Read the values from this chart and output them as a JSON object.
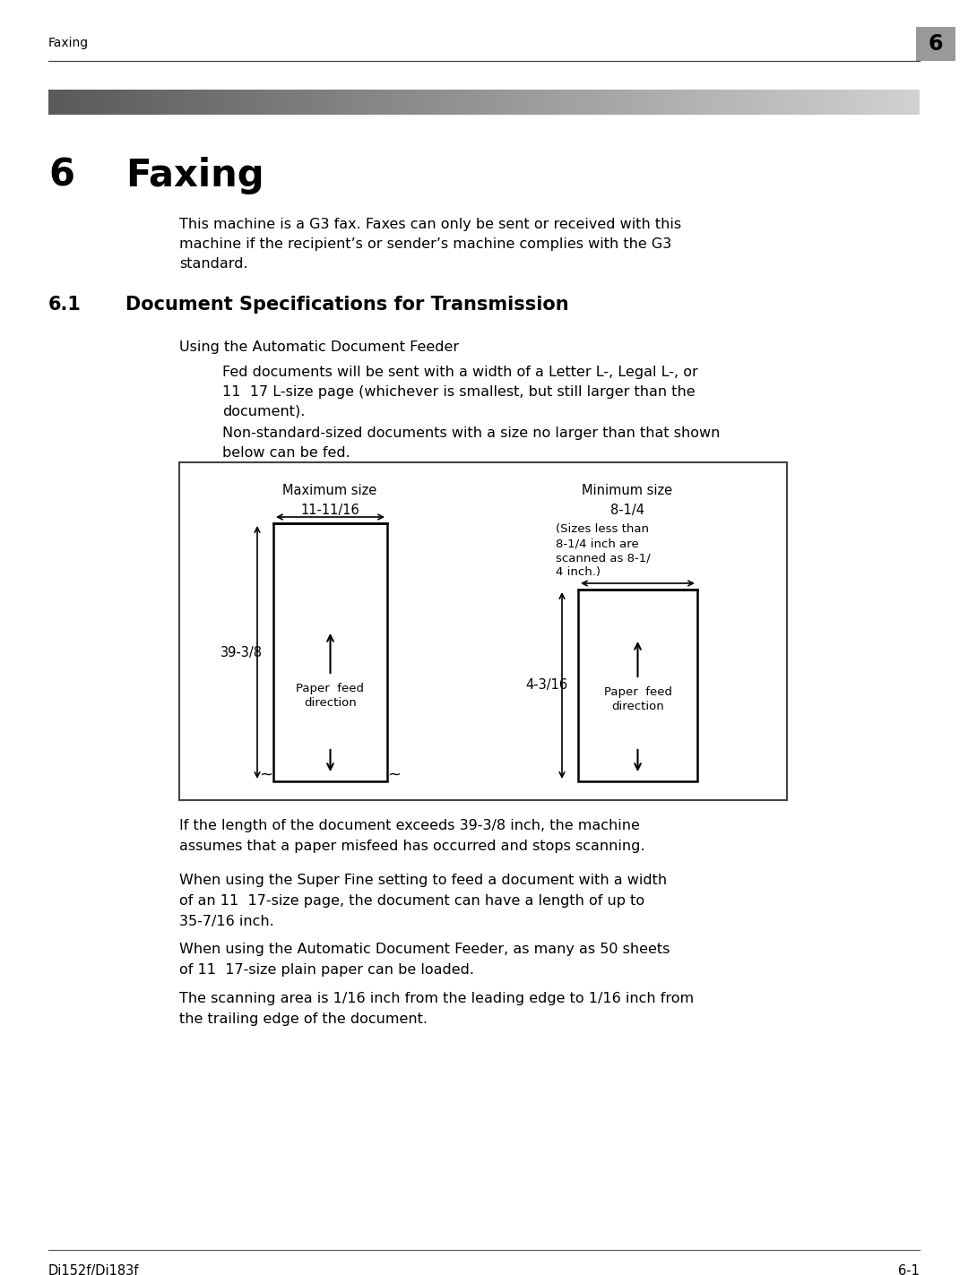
{
  "page_bg": "#ffffff",
  "header_text": "Faxing",
  "header_num": "6",
  "chapter_num": "6",
  "chapter_title": "Faxing",
  "section_num": "6.1",
  "section_title": "Document Specifications for Transmission",
  "intro_text": "This machine is a G3 fax. Faxes can only be sent or received with this\nmachine if the recipient’s or sender’s machine complies with the G3\nstandard.",
  "subsection_label": "Using the Automatic Document Feeder",
  "para1": "Fed documents will be sent with a width of a Letter L-, Legal L-, or\n11  17 L-size page (whichever is smallest, but still larger than the\ndocument).",
  "para2": "Non-standard-sized documents with a size no larger than that shown\nbelow can be fed.",
  "para3": "If the length of the document exceeds 39-3/8 inch, the machine\nassumes that a paper misfeed has occurred and stops scanning.",
  "para4": "When using the Super Fine setting to feed a document with a width\nof an 11  17-size page, the document can have a length of up to\n35-7/16 inch.",
  "para5": "When using the Automatic Document Feeder, as many as 50 sheets\nof 11  17-size plain paper can be loaded.",
  "para6": "The scanning area is 1/16 inch from the leading edge to 1/16 inch from\nthe trailing edge of the document.",
  "footer_left": "Di152f/Di183f",
  "footer_right": "6-1"
}
